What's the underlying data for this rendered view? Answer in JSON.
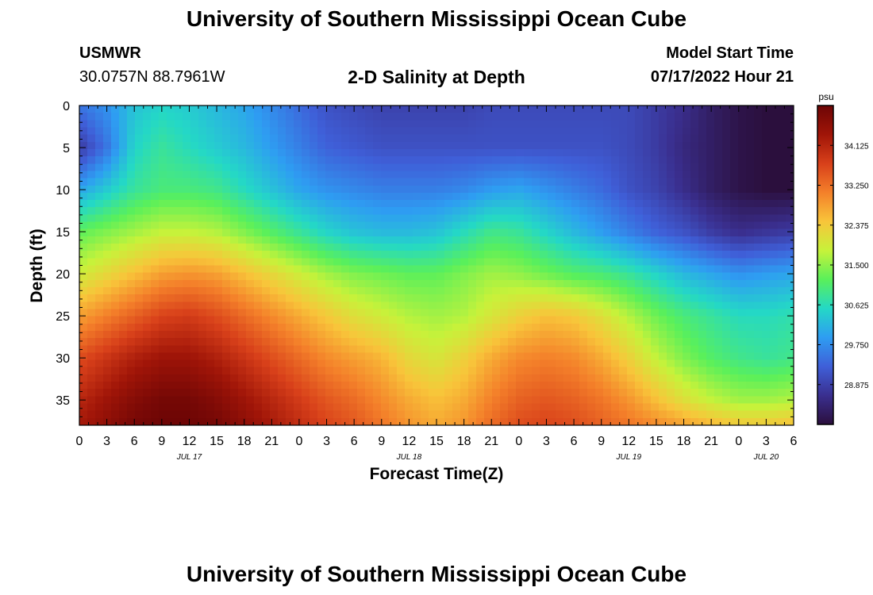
{
  "header": {
    "title": "University of Southern Mississippi Ocean Cube",
    "station_id": "USMWR",
    "station_coords": "30.0757N  88.7961W",
    "plot_title": "2-D Salinity at Depth",
    "model_start_label": "Model Start Time",
    "model_start_value": "07/17/2022 Hour 21"
  },
  "footer": {
    "title": "University of Southern Mississippi Ocean Cube"
  },
  "chart_data": {
    "type": "heatmap",
    "title": "2-D Salinity at Depth",
    "xlabel": "Forecast Time(Z)",
    "ylabel": "Depth (ft)",
    "x_unit": "hours since 07/17/2022 00Z",
    "xlim": [
      0,
      78
    ],
    "ylim": [
      38,
      0
    ],
    "x_tick_values": [
      0,
      3,
      6,
      9,
      12,
      15,
      18,
      21,
      24,
      27,
      30,
      33,
      36,
      39,
      42,
      45,
      48,
      51,
      54,
      57,
      60,
      63,
      66,
      69,
      72,
      75,
      78
    ],
    "x_tick_labels": [
      "0",
      "3",
      "6",
      "9",
      "12",
      "15",
      "18",
      "21",
      "0",
      "3",
      "6",
      "9",
      "12",
      "15",
      "18",
      "21",
      "0",
      "3",
      "6",
      "9",
      "12",
      "15",
      "18",
      "21",
      "0",
      "3",
      "6"
    ],
    "date_labels": [
      {
        "x": 12,
        "label": "JUL 17"
      },
      {
        "x": 36,
        "label": "JUL 18"
      },
      {
        "x": 60,
        "label": "JUL 19"
      },
      {
        "x": 75,
        "label": "JUL 20"
      }
    ],
    "y_tick_values": [
      0,
      5,
      10,
      15,
      20,
      25,
      30,
      35
    ],
    "y_tick_labels": [
      "0",
      "5",
      "10",
      "15",
      "20",
      "25",
      "30",
      "35"
    ],
    "colorbar": {
      "unit": "psu",
      "min": 28.0,
      "max": 35.0,
      "ticks": [
        34.125,
        33.25,
        32.375,
        31.5,
        30.625,
        29.75,
        28.875
      ],
      "tick_labels": [
        "34.125",
        "33.250",
        "32.375",
        "31.500",
        "30.625",
        "29.750",
        "28.875"
      ],
      "colors": [
        "#2b0f3d",
        "#3a2f8f",
        "#3f5fd8",
        "#2e9df2",
        "#24d8c6",
        "#5af05a",
        "#c7f23a",
        "#f8c53a",
        "#f4802a",
        "#d8401a",
        "#a01508",
        "#6d0505"
      ]
    },
    "x": [
      0,
      3,
      6,
      9,
      12,
      15,
      18,
      21,
      24,
      27,
      30,
      33,
      36,
      39,
      42,
      45,
      48,
      51,
      54,
      57,
      60,
      63,
      66,
      69,
      72,
      75,
      78
    ],
    "depths": [
      0,
      5,
      10,
      15,
      20,
      25,
      30,
      35,
      38
    ],
    "values": [
      [
        29.5,
        29.8,
        30.3,
        30.5,
        30.4,
        30.2,
        30.0,
        29.7,
        29.4,
        29.1,
        29.0,
        28.9,
        28.9,
        28.9,
        28.9,
        29.0,
        29.0,
        29.0,
        29.0,
        29.0,
        29.0,
        28.8,
        28.6,
        28.3,
        28.1,
        28.0,
        28.0
      ],
      [
        28.8,
        29.5,
        30.5,
        30.8,
        30.6,
        30.4,
        30.2,
        29.9,
        29.6,
        29.3,
        29.2,
        29.1,
        29.1,
        29.1,
        29.1,
        29.1,
        29.1,
        29.1,
        29.1,
        29.1,
        29.0,
        28.8,
        28.5,
        28.3,
        28.1,
        28.0,
        28.0
      ],
      [
        30.0,
        30.4,
        30.8,
        31.0,
        31.0,
        30.9,
        30.6,
        30.3,
        30.0,
        29.8,
        29.7,
        29.6,
        29.6,
        29.6,
        29.7,
        29.9,
        30.0,
        29.8,
        29.6,
        29.4,
        29.1,
        28.9,
        28.6,
        28.3,
        28.1,
        28.0,
        28.0
      ],
      [
        31.2,
        31.4,
        31.6,
        31.8,
        31.8,
        31.7,
        31.4,
        31.1,
        30.8,
        30.5,
        30.3,
        30.2,
        30.2,
        30.3,
        30.6,
        30.9,
        30.8,
        30.5,
        30.2,
        29.9,
        29.6,
        29.3,
        29.1,
        28.8,
        28.6,
        28.7,
        28.8
      ],
      [
        31.9,
        32.2,
        32.5,
        32.8,
        32.9,
        32.8,
        32.5,
        32.2,
        31.9,
        31.6,
        31.4,
        31.3,
        31.2,
        31.2,
        31.4,
        31.6,
        31.5,
        31.3,
        31.1,
        31.0,
        30.8,
        30.5,
        30.2,
        30.0,
        29.8,
        29.9,
        30.0
      ],
      [
        32.8,
        33.1,
        33.4,
        33.7,
        33.8,
        33.6,
        33.3,
        33.0,
        32.7,
        32.4,
        32.1,
        31.9,
        31.7,
        31.6,
        31.7,
        32.0,
        32.3,
        32.5,
        32.4,
        32.1,
        31.7,
        31.3,
        31.0,
        30.8,
        30.6,
        30.6,
        30.7
      ],
      [
        33.6,
        33.9,
        34.2,
        34.4,
        34.4,
        34.2,
        33.9,
        33.6,
        33.3,
        33.0,
        32.8,
        32.6,
        32.2,
        32.0,
        32.3,
        32.7,
        33.0,
        33.1,
        33.0,
        32.7,
        32.3,
        31.8,
        31.4,
        31.1,
        30.9,
        30.8,
        30.9
      ],
      [
        34.1,
        34.4,
        34.7,
        34.9,
        34.9,
        34.7,
        34.4,
        34.1,
        33.8,
        33.5,
        33.3,
        33.0,
        32.7,
        32.5,
        32.7,
        33.1,
        33.4,
        33.5,
        33.4,
        33.2,
        32.9,
        32.5,
        32.1,
        31.8,
        31.6,
        31.6,
        31.7
      ],
      [
        34.3,
        34.6,
        34.9,
        35.0,
        35.0,
        34.9,
        34.6,
        34.3,
        34.0,
        33.7,
        33.5,
        33.2,
        32.9,
        32.7,
        32.9,
        33.3,
        33.6,
        33.7,
        33.6,
        33.4,
        33.2,
        33.0,
        32.8,
        32.6,
        32.4,
        32.4,
        32.5
      ]
    ]
  }
}
